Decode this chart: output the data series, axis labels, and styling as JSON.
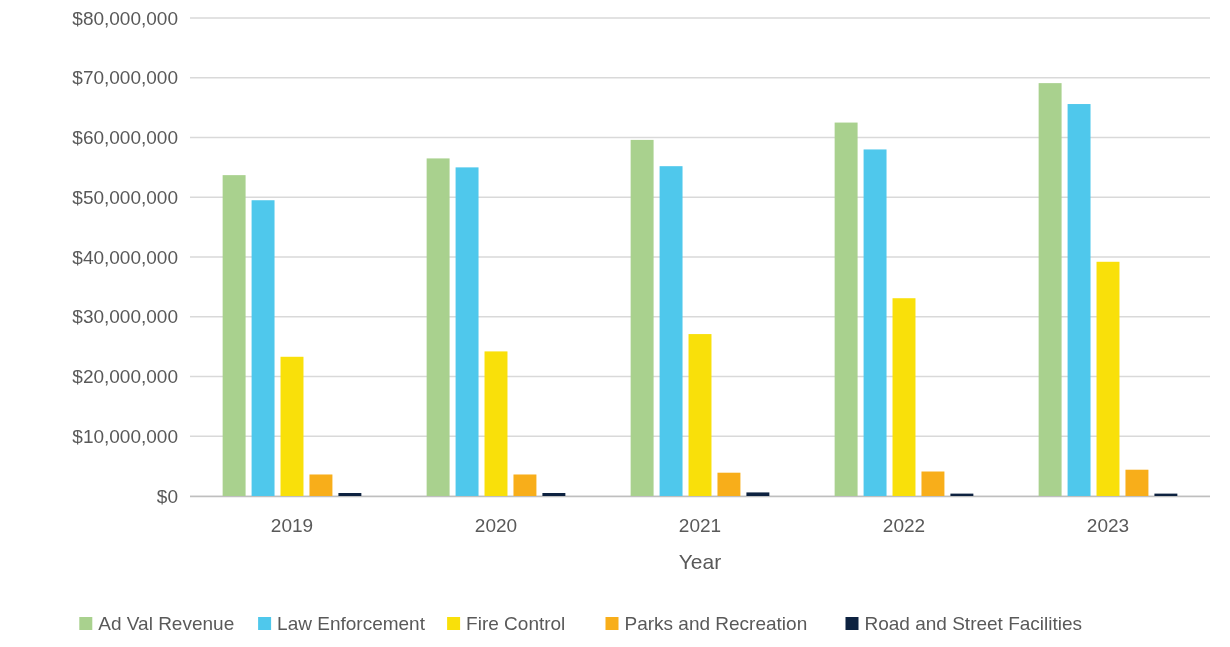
{
  "chart_data": {
    "type": "bar",
    "xlabel": "Year",
    "categories": [
      "2019",
      "2020",
      "2021",
      "2022",
      "2023"
    ],
    "series": [
      {
        "name": "Ad Val Revenue",
        "color": "#a9d18e",
        "values": [
          53700000,
          56500000,
          59600000,
          62500000,
          69100000
        ]
      },
      {
        "name": "Law Enforcement",
        "color": "#4fc8ec",
        "values": [
          49500000,
          55000000,
          55200000,
          58000000,
          65600000
        ]
      },
      {
        "name": "Fire Control",
        "color": "#f9e00a",
        "values": [
          23300000,
          24200000,
          27100000,
          33100000,
          39200000
        ]
      },
      {
        "name": "Parks and Recreation",
        "color": "#f8ae1a",
        "values": [
          3600000,
          3600000,
          3900000,
          4100000,
          4400000
        ]
      },
      {
        "name": "Road and Street Facilities",
        "color": "#0d2240",
        "values": [
          500000,
          500000,
          600000,
          400000,
          400000
        ]
      }
    ],
    "ylim": [
      0,
      80000000
    ],
    "yticks": [
      {
        "value": 0,
        "label": "$0"
      },
      {
        "value": 10000000,
        "label": "$10,000,000"
      },
      {
        "value": 20000000,
        "label": "$20,000,000"
      },
      {
        "value": 30000000,
        "label": "$30,000,000"
      },
      {
        "value": 40000000,
        "label": "$40,000,000"
      },
      {
        "value": 50000000,
        "label": "$50,000,000"
      },
      {
        "value": 60000000,
        "label": "$60,000,000"
      },
      {
        "value": 70000000,
        "label": "$70,000,000"
      },
      {
        "value": 80000000,
        "label": "$80,000,000"
      }
    ],
    "grid": "y",
    "legend": "bottom"
  }
}
